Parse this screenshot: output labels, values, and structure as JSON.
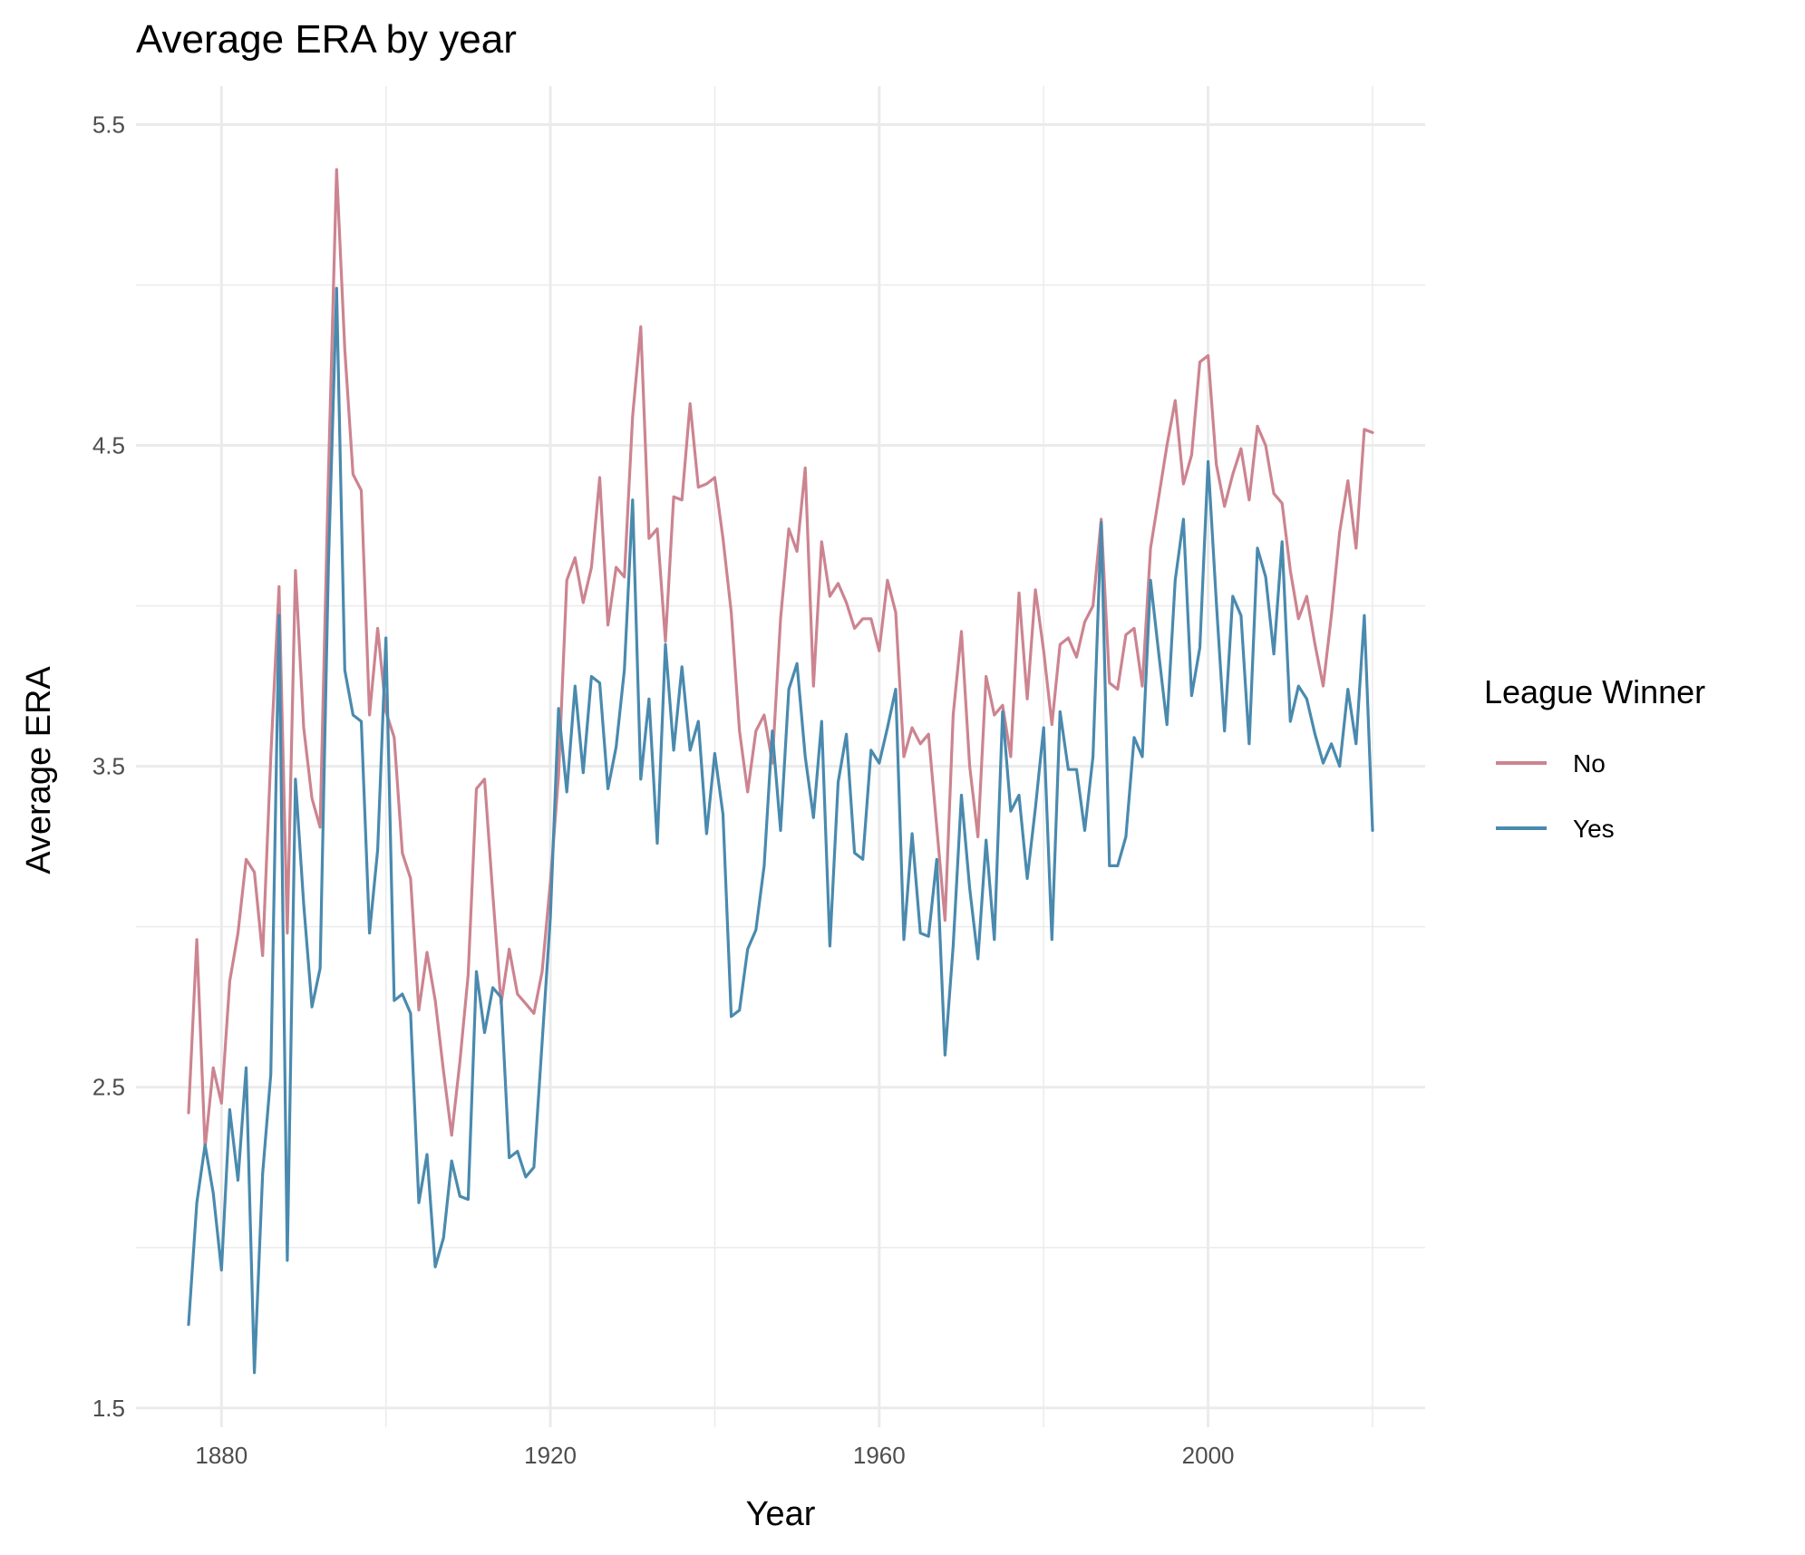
{
  "chart_data": {
    "type": "line",
    "title": "Average ERA by year",
    "xlabel": "Year",
    "ylabel": "Average ERA",
    "xlim": [
      1869.6,
      2026.4
    ],
    "ylim": [
      1.44,
      5.62
    ],
    "x_ticks": [
      1880,
      1920,
      1960,
      2000
    ],
    "x_tick_labels": [
      "1880",
      "1920",
      "1960",
      "2000"
    ],
    "x_minor_ticks": [
      1900,
      1940,
      1980,
      2020
    ],
    "y_ticks": [
      1.5,
      2.5,
      3.5,
      4.5,
      5.5
    ],
    "y_tick_labels": [
      "1.5",
      "2.5",
      "3.5",
      "4.5",
      "5.5"
    ],
    "y_minor_ticks": [
      2.0,
      3.0,
      4.0,
      5.0
    ],
    "grid": true,
    "legend": {
      "title": "League Winner",
      "position": "right"
    },
    "series": [
      {
        "name": "No",
        "color": "#CC8490",
        "x": [
          1876,
          1877,
          1878,
          1879,
          1880,
          1881,
          1882,
          1883,
          1884,
          1885,
          1886,
          1887,
          1888,
          1889,
          1890,
          1891,
          1892,
          1893,
          1894,
          1895,
          1896,
          1897,
          1898,
          1899,
          1900,
          1901,
          1902,
          1903,
          1904,
          1905,
          1906,
          1907,
          1908,
          1909,
          1910,
          1911,
          1912,
          1913,
          1914,
          1915,
          1916,
          1917,
          1918,
          1919,
          1920,
          1921,
          1922,
          1923,
          1924,
          1925,
          1926,
          1927,
          1928,
          1929,
          1930,
          1931,
          1932,
          1933,
          1934,
          1935,
          1936,
          1937,
          1938,
          1939,
          1940,
          1941,
          1942,
          1943,
          1944,
          1945,
          1946,
          1947,
          1948,
          1949,
          1950,
          1951,
          1952,
          1953,
          1954,
          1955,
          1956,
          1957,
          1958,
          1959,
          1960,
          1961,
          1962,
          1963,
          1964,
          1965,
          1966,
          1967,
          1968,
          1969,
          1970,
          1971,
          1972,
          1973,
          1974,
          1975,
          1976,
          1977,
          1978,
          1979,
          1980,
          1981,
          1982,
          1983,
          1984,
          1985,
          1986,
          1987,
          1988,
          1989,
          1990,
          1991,
          1992,
          1993,
          1994,
          1995,
          1996,
          1997,
          1998,
          1999,
          2000,
          2001,
          2002,
          2003,
          2004,
          2005,
          2006,
          2007,
          2008,
          2009,
          2010,
          2011,
          2012,
          2013,
          2014,
          2015,
          2016,
          2017,
          2018,
          2019,
          2020
        ],
        "values": [
          2.42,
          2.96,
          2.31,
          2.56,
          2.45,
          2.83,
          2.98,
          3.21,
          3.17,
          2.91,
          3.53,
          4.06,
          2.98,
          4.11,
          3.62,
          3.4,
          3.31,
          4.4,
          5.36,
          4.8,
          4.41,
          4.36,
          3.66,
          3.93,
          3.67,
          3.59,
          3.23,
          3.15,
          2.74,
          2.92,
          2.77,
          2.55,
          2.35,
          2.58,
          2.85,
          3.43,
          3.46,
          3.1,
          2.76,
          2.93,
          2.79,
          2.76,
          2.73,
          2.86,
          3.14,
          3.47,
          4.08,
          4.15,
          4.01,
          4.12,
          4.4,
          3.94,
          4.12,
          4.09,
          4.59,
          4.87,
          4.21,
          4.24,
          3.89,
          4.34,
          4.33,
          4.63,
          4.37,
          4.38,
          4.4,
          4.21,
          3.98,
          3.61,
          3.42,
          3.61,
          3.66,
          3.51,
          3.96,
          4.24,
          4.17,
          4.43,
          3.75,
          4.2,
          4.03,
          4.07,
          4.01,
          3.93,
          3.96,
          3.96,
          3.86,
          4.08,
          3.98,
          3.53,
          3.62,
          3.57,
          3.6,
          3.31,
          3.02,
          3.66,
          3.92,
          3.5,
          3.28,
          3.78,
          3.66,
          3.69,
          3.53,
          4.04,
          3.71,
          4.05,
          3.86,
          3.63,
          3.88,
          3.9,
          3.84,
          3.95,
          4.0,
          4.27,
          3.76,
          3.74,
          3.91,
          3.93,
          3.75,
          4.18,
          4.34,
          4.5,
          4.64,
          4.38,
          4.47,
          4.76,
          4.78,
          4.44,
          4.31,
          4.41,
          4.49,
          4.33,
          4.56,
          4.5,
          4.35,
          4.32,
          4.11,
          3.96,
          4.03,
          3.88,
          3.75,
          3.97,
          4.23,
          4.39,
          4.18,
          4.55,
          4.54
        ]
      },
      {
        "name": "Yes",
        "color": "#4A8AAE",
        "x": [
          1876,
          1877,
          1878,
          1879,
          1880,
          1881,
          1882,
          1883,
          1884,
          1885,
          1886,
          1887,
          1888,
          1889,
          1890,
          1891,
          1892,
          1893,
          1894,
          1895,
          1896,
          1897,
          1898,
          1899,
          1900,
          1901,
          1902,
          1903,
          1904,
          1905,
          1906,
          1907,
          1908,
          1909,
          1910,
          1911,
          1912,
          1913,
          1914,
          1915,
          1916,
          1917,
          1918,
          1919,
          1920,
          1921,
          1922,
          1923,
          1924,
          1925,
          1926,
          1927,
          1928,
          1929,
          1930,
          1931,
          1932,
          1933,
          1934,
          1935,
          1936,
          1937,
          1938,
          1939,
          1940,
          1941,
          1942,
          1943,
          1944,
          1945,
          1946,
          1947,
          1948,
          1949,
          1950,
          1951,
          1952,
          1953,
          1954,
          1955,
          1956,
          1957,
          1958,
          1959,
          1960,
          1961,
          1962,
          1963,
          1964,
          1965,
          1966,
          1967,
          1968,
          1969,
          1970,
          1971,
          1972,
          1973,
          1974,
          1975,
          1976,
          1977,
          1978,
          1979,
          1980,
          1981,
          1982,
          1983,
          1984,
          1985,
          1986,
          1987,
          1988,
          1989,
          1990,
          1991,
          1992,
          1993,
          1994,
          1995,
          1996,
          1997,
          1998,
          1999,
          2000,
          2001,
          2002,
          2003,
          2004,
          2005,
          2006,
          2007,
          2008,
          2009,
          2010,
          2011,
          2012,
          2013,
          2014,
          2015,
          2016,
          2017,
          2018,
          2019,
          2020
        ],
        "values": [
          1.76,
          2.14,
          2.32,
          2.17,
          1.93,
          2.43,
          2.21,
          2.56,
          1.61,
          2.23,
          2.54,
          3.97,
          1.96,
          3.46,
          3.07,
          2.75,
          2.87,
          4.12,
          4.99,
          3.8,
          3.66,
          3.64,
          2.98,
          3.24,
          3.9,
          2.77,
          2.79,
          2.73,
          2.14,
          2.29,
          1.94,
          2.03,
          2.27,
          2.16,
          2.15,
          2.86,
          2.67,
          2.81,
          2.78,
          2.28,
          2.3,
          2.22,
          2.25,
          2.64,
          3.03,
          3.68,
          3.42,
          3.75,
          3.48,
          3.78,
          3.76,
          3.43,
          3.56,
          3.8,
          4.33,
          3.46,
          3.71,
          3.26,
          3.88,
          3.55,
          3.81,
          3.55,
          3.64,
          3.29,
          3.54,
          3.35,
          2.72,
          2.74,
          2.93,
          2.99,
          3.19,
          3.61,
          3.3,
          3.74,
          3.82,
          3.53,
          3.34,
          3.64,
          2.94,
          3.45,
          3.6,
          3.23,
          3.21,
          3.55,
          3.51,
          3.62,
          3.74,
          2.96,
          3.29,
          2.98,
          2.97,
          3.21,
          2.6,
          2.94,
          3.41,
          3.12,
          2.9,
          3.27,
          2.96,
          3.67,
          3.36,
          3.41,
          3.15,
          3.37,
          3.62,
          2.96,
          3.67,
          3.49,
          3.49,
          3.3,
          3.53,
          4.26,
          3.19,
          3.19,
          3.28,
          3.59,
          3.53,
          4.08,
          3.85,
          3.63,
          4.08,
          4.27,
          3.72,
          3.87,
          4.45,
          4.01,
          3.61,
          4.03,
          3.97,
          3.57,
          4.18,
          4.09,
          3.85,
          4.2,
          3.64,
          3.75,
          3.71,
          3.6,
          3.51,
          3.57,
          3.5,
          3.74,
          3.57,
          3.97,
          3.3
        ]
      }
    ]
  }
}
